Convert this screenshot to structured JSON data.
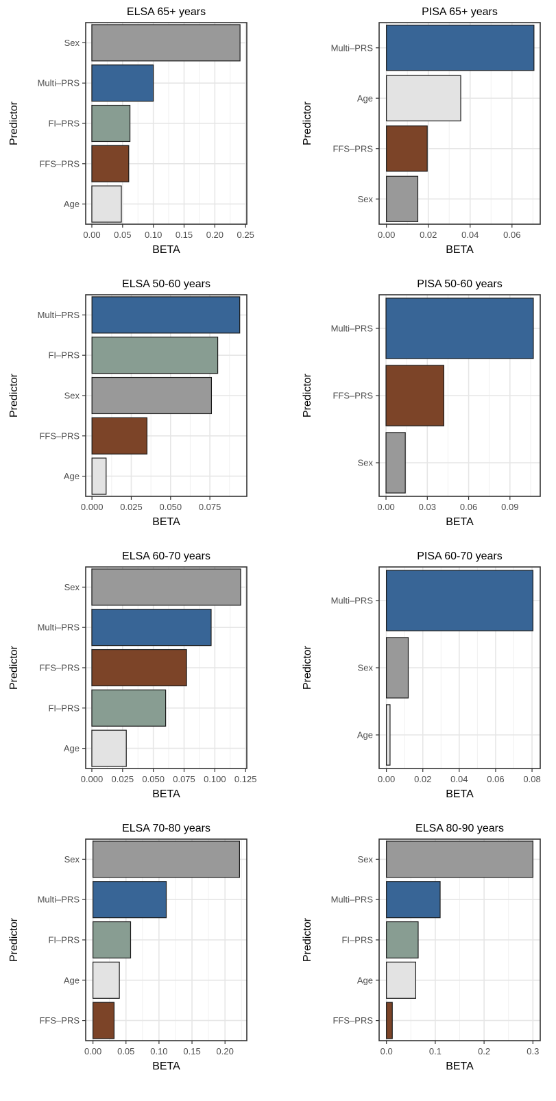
{
  "colors": {
    "Sex": "#999999",
    "Multi–PRS": "#386596",
    "FI–PRS": "#889d92",
    "FFS–PRS": "#7c4428",
    "Age": "#e3e3e3"
  },
  "chart_data": [
    {
      "type": "bar",
      "orientation": "horizontal",
      "title": "ELSA 65+ years",
      "xlabel": "BETA",
      "ylabel": "Predictor",
      "categories": [
        "Sex",
        "Multi–PRS",
        "FI–PRS",
        "FFS–PRS",
        "Age"
      ],
      "values": [
        0.241,
        0.1,
        0.062,
        0.06,
        0.048
      ],
      "xlim": [
        -0.01,
        0.252
      ],
      "xticks": [
        0,
        0.05,
        0.1,
        0.15,
        0.2,
        0.25
      ],
      "xtick_labels": [
        "0.00",
        "0.05",
        "0.10",
        "0.15",
        "0.20",
        "0.25"
      ],
      "grid": true
    },
    {
      "type": "bar",
      "orientation": "horizontal",
      "title": "PISA 65+ years",
      "xlabel": "BETA",
      "ylabel": "Predictor",
      "categories": [
        "Multi–PRS",
        "Age",
        "FFS–PRS",
        "Sex"
      ],
      "values": [
        0.0705,
        0.0355,
        0.0195,
        0.015
      ],
      "xlim": [
        -0.0035,
        0.0735
      ],
      "xticks": [
        0,
        0.02,
        0.04,
        0.06
      ],
      "xtick_labels": [
        "0.00",
        "0.02",
        "0.04",
        "0.06"
      ],
      "grid": true
    },
    {
      "type": "bar",
      "orientation": "horizontal",
      "title": "ELSA 50-60 years",
      "xlabel": "BETA",
      "ylabel": "Predictor",
      "categories": [
        "Multi–PRS",
        "FI–PRS",
        "Sex",
        "FFS–PRS",
        "Age"
      ],
      "values": [
        0.094,
        0.08,
        0.076,
        0.035,
        0.009
      ],
      "xlim": [
        -0.004,
        0.0985
      ],
      "xticks": [
        0,
        0.025,
        0.05,
        0.075
      ],
      "xtick_labels": [
        "0.000",
        "0.025",
        "0.050",
        "0.075"
      ],
      "grid": true
    },
    {
      "type": "bar",
      "orientation": "horizontal",
      "title": "PISA 50-60 years",
      "xlabel": "BETA",
      "ylabel": "Predictor",
      "categories": [
        "Multi–PRS",
        "FFS–PRS",
        "Sex"
      ],
      "values": [
        0.107,
        0.042,
        0.014
      ],
      "xlim": [
        -0.005,
        0.112
      ],
      "xticks": [
        0,
        0.03,
        0.06,
        0.09
      ],
      "xtick_labels": [
        "0.00",
        "0.03",
        "0.06",
        "0.09"
      ],
      "grid": true
    },
    {
      "type": "bar",
      "orientation": "horizontal",
      "title": "ELSA 60-70 years",
      "xlabel": "BETA",
      "ylabel": "Predictor",
      "categories": [
        "Sex",
        "Multi–PRS",
        "FFS–PRS",
        "FI–PRS",
        "Age"
      ],
      "values": [
        0.121,
        0.097,
        0.077,
        0.06,
        0.028
      ],
      "xlim": [
        -0.005,
        0.126
      ],
      "xticks": [
        0,
        0.025,
        0.05,
        0.075,
        0.1,
        0.125
      ],
      "xtick_labels": [
        "0.000",
        "0.025",
        "0.050",
        "0.075",
        "0.100",
        "0.125"
      ],
      "grid": true
    },
    {
      "type": "bar",
      "orientation": "horizontal",
      "title": "PISA 60-70 years",
      "xlabel": "BETA",
      "ylabel": "Predictor",
      "categories": [
        "Multi–PRS",
        "Sex",
        "Age"
      ],
      "values": [
        0.0805,
        0.012,
        0.002
      ],
      "xlim": [
        -0.004,
        0.0845
      ],
      "xticks": [
        0,
        0.02,
        0.04,
        0.06,
        0.08
      ],
      "xtick_labels": [
        "0.00",
        "0.02",
        "0.04",
        "0.06",
        "0.08"
      ],
      "grid": true
    },
    {
      "type": "bar",
      "orientation": "horizontal",
      "title": "ELSA 70-80 years",
      "xlabel": "BETA",
      "ylabel": "Predictor",
      "categories": [
        "Sex",
        "Multi–PRS",
        "FI–PRS",
        "Age",
        "FFS–PRS"
      ],
      "values": [
        0.222,
        0.111,
        0.057,
        0.04,
        0.032
      ],
      "xlim": [
        -0.011,
        0.233
      ],
      "xticks": [
        0,
        0.05,
        0.1,
        0.15,
        0.2
      ],
      "xtick_labels": [
        "0.00",
        "0.05",
        "0.10",
        "0.15",
        "0.20"
      ],
      "grid": true
    },
    {
      "type": "bar",
      "orientation": "horizontal",
      "title": "ELSA 80-90 years",
      "xlabel": "BETA",
      "ylabel": "Predictor",
      "categories": [
        "Sex",
        "Multi–PRS",
        "FI–PRS",
        "Age",
        "FFS–PRS"
      ],
      "values": [
        0.3,
        0.11,
        0.065,
        0.06,
        0.012
      ],
      "xlim": [
        -0.015,
        0.315
      ],
      "xticks": [
        0,
        0.1,
        0.2,
        0.3
      ],
      "xtick_labels": [
        "0.0",
        "0.1",
        "0.2",
        "0.3"
      ],
      "grid": true
    }
  ]
}
